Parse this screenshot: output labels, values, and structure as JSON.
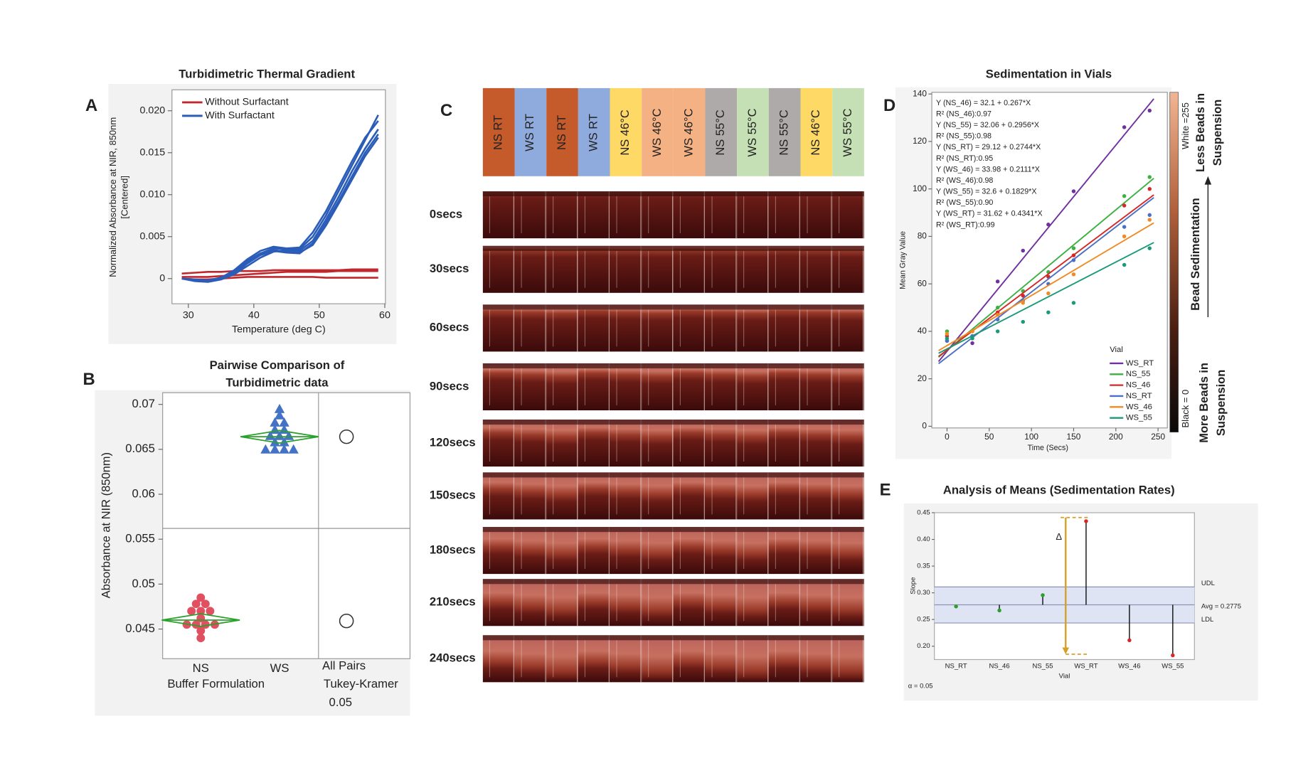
{
  "figure_labels": [
    "A",
    "B",
    "C",
    "D",
    "E"
  ],
  "chart_data": [
    {
      "type": "line",
      "title": "Turbidimetric Thermal Gradient",
      "x_label": "Temperature (deg C)",
      "y_label": [
        "Normalized Absorbance at NIR, 850nm",
        "[Centered]"
      ],
      "x": [
        29,
        31,
        33,
        35,
        37,
        39,
        41,
        43,
        45,
        47,
        49,
        51,
        53,
        55,
        57,
        59
      ],
      "series": [
        {
          "name": "Without Surfactant",
          "color": "#c0282d",
          "values": [
            0.0006,
            0.0007,
            0.0008,
            0.0008,
            0.0009,
            0.0009,
            0.0009,
            0.001,
            0.001,
            0.001,
            0.001,
            0.001,
            0.001,
            0.0011,
            0.0011,
            0.0011
          ]
        },
        {
          "color": "#c0282d",
          "values": [
            0.0002,
            0.0002,
            0.0002,
            0.0003,
            0.0004,
            0.0005,
            0.0006,
            0.0007,
            0.0008,
            0.0008,
            0.0008,
            0.0008,
            0.0009,
            0.0009,
            0.0009,
            0.0009
          ]
        },
        {
          "color": "#c0282d",
          "values": [
            0,
            -0.0001,
            -0.0001,
            0,
            0.0001,
            0.0002,
            0.0002,
            0.0002,
            0.0002,
            0.0002,
            0.0002,
            0.0001,
            0.0001,
            0.0001,
            0.0001,
            0.0001
          ]
        },
        {
          "name": "With Surfactant",
          "color": "#2a5cb8",
          "values": [
            0,
            -0.0002,
            -0.0003,
            0,
            0.0008,
            0.002,
            0.003,
            0.0036,
            0.0035,
            0.0035,
            0.005,
            0.0075,
            0.0105,
            0.0135,
            0.0165,
            0.0195
          ]
        },
        {
          "color": "#2a5cb8",
          "values": [
            0,
            -0.0001,
            -0.0002,
            0.0001,
            0.001,
            0.0023,
            0.0033,
            0.0038,
            0.0036,
            0.0037,
            0.0055,
            0.008,
            0.011,
            0.014,
            0.0168,
            0.0188
          ]
        },
        {
          "color": "#2a5cb8",
          "values": [
            0,
            -0.0003,
            -0.0004,
            -0.0001,
            0.0005,
            0.0015,
            0.0025,
            0.0032,
            0.0034,
            0.0033,
            0.0045,
            0.007,
            0.0098,
            0.0128,
            0.0155,
            0.0178
          ]
        },
        {
          "color": "#2a5cb8",
          "values": [
            0,
            -0.0002,
            -0.0003,
            0,
            0.0006,
            0.0018,
            0.0028,
            0.0033,
            0.0031,
            0.003,
            0.0042,
            0.0066,
            0.0093,
            0.0122,
            0.015,
            0.0172
          ]
        },
        {
          "color": "#2a5cb8",
          "values": [
            0,
            -0.0002,
            -0.0002,
            0.0001,
            0.0009,
            0.0021,
            0.003,
            0.0034,
            0.0032,
            0.0031,
            0.004,
            0.0063,
            0.009,
            0.0118,
            0.0146,
            0.0168
          ]
        }
      ],
      "xlim": [
        27.5,
        60.1
      ],
      "xticks": [
        30,
        40,
        50,
        60
      ],
      "ylim": [
        -0.003,
        0.0225
      ],
      "yticks": [
        0,
        0.005,
        {
          "value": 0.01,
          "label": "0.010"
        },
        0.015,
        {
          "value": 0.02,
          "label": "0.020"
        }
      ],
      "legend": "upper left"
    },
    {
      "type": "strip",
      "title": [
        "Pairwise Comparison of",
        "Turbidimetric data"
      ],
      "x_label": "Buffer Formulation",
      "y_label": "Absorbance at NIR (850nm)",
      "groups": [
        {
          "name": "NS",
          "color": "#e05060",
          "marker": "circle",
          "values": [
            0.0485,
            0.0478,
            0.0478,
            0.047,
            0.047,
            0.047,
            0.0462,
            0.0455,
            0.0455,
            0.0455,
            0.0455,
            0.0448,
            0.044
          ],
          "mean": 0.046,
          "ci": [
            0.0453,
            0.0467
          ]
        },
        {
          "name": "WS",
          "color": "#4472c4",
          "marker": "triangle",
          "values": [
            0.0695,
            0.0688,
            0.068,
            0.068,
            0.0672,
            0.0672,
            0.0665,
            0.0665,
            0.0665,
            0.0658,
            0.0658,
            0.065,
            0.065,
            0.065,
            0.065
          ],
          "mean": 0.0664,
          "ci": [
            0.0657,
            0.0671
          ]
        }
      ],
      "comparison": {
        "label": [
          "All Pairs",
          "Tukey-Kramer",
          "0.05"
        ],
        "circles": [
          0.0459,
          0.0664
        ]
      },
      "reference_line": 0.0562,
      "ylim": [
        0.0417,
        0.0713
      ],
      "yticks": [
        0.045,
        0.05,
        0.055,
        0.06,
        0.065,
        0.07
      ]
    },
    {
      "type": "scatter",
      "title": "Sedimentation in Vials",
      "x_label": "Time (Secs)",
      "y_label": "Mean Gray Value",
      "x": [
        0,
        30,
        60,
        90,
        120,
        150,
        210,
        240
      ],
      "legend_title": "Vial",
      "legend": "lower right",
      "series": [
        {
          "name": "WS_RT",
          "color": "#7030a0",
          "values": [
            36,
            35,
            61,
            74,
            85,
            99,
            126,
            133
          ],
          "intercept": 31.62,
          "slope": 0.4341
        },
        {
          "name": "NS_55",
          "color": "#3cb043",
          "values": [
            40,
            40,
            50,
            57,
            65,
            75,
            97,
            105
          ],
          "intercept": 32.06,
          "slope": 0.2956
        },
        {
          "name": "NS_46",
          "color": "#d62728",
          "values": [
            38,
            38,
            48,
            55,
            63,
            72,
            93,
            100
          ],
          "intercept": 32.1,
          "slope": 0.267
        },
        {
          "name": "NS_RT",
          "color": "#4a6fc4",
          "values": [
            36,
            38,
            45,
            53,
            60,
            70,
            84,
            89
          ],
          "intercept": 29.12,
          "slope": 0.2744
        },
        {
          "name": "WS_46",
          "color": "#f08a24",
          "values": [
            39,
            40,
            47,
            52,
            56,
            64,
            80,
            87
          ],
          "intercept": 33.98,
          "slope": 0.2111
        },
        {
          "name": "WS_55",
          "color": "#1a9a7a",
          "values": [
            37,
            37,
            40,
            44,
            48,
            52,
            68,
            75
          ],
          "intercept": 32.6,
          "slope": 0.1829
        }
      ],
      "annotations": [
        "Y (NS_46) = 32.1 + 0.267*X",
        "R² (NS_46):0.97",
        "Y (NS_55) = 32.06 + 0.2956*X",
        "R² (NS_55):0.98",
        "Y (NS_RT) = 29.12 + 0.2744*X",
        "R² (NS_RT):0.95",
        "Y (WS_46) = 33.98 + 0.2111*X",
        "R² (WS_46):0.98",
        "Y (WS_55) = 32.6 + 0.1829*X",
        "R² (WS_55):0.90",
        "Y (WS_RT) = 31.62 + 0.4341*X",
        "R² (WS_RT):0.99"
      ],
      "colorbar": {
        "top_label": "White =255",
        "bottom_label": "Black = 0",
        "upper_text": [
          "Less Beads in",
          "Suspension"
        ],
        "middle_text": "Bead Sedimentation",
        "lower_text": [
          "More Beads in",
          "Suspension"
        ]
      },
      "xlim": [
        -18,
        261
      ],
      "xticks": [
        0,
        50,
        100,
        150,
        200,
        250
      ],
      "ylim": [
        0,
        140
      ],
      "yticks": [
        0,
        20,
        40,
        60,
        80,
        100,
        120,
        140
      ]
    },
    {
      "type": "anom",
      "title": "Analysis of Means (Sedimentation Rates)",
      "x_label": "Vial",
      "y_label": "Slope",
      "categories": [
        "NS_RT",
        "NS_46",
        "NS_55",
        "WS_RT",
        "WS_46",
        "WS_55"
      ],
      "values": [
        0.2744,
        0.267,
        0.2956,
        0.4341,
        0.2111,
        0.1829
      ],
      "point_colors": [
        "#2ca02c",
        "#2ca02c",
        "#2ca02c",
        "#d62728",
        "#d62728",
        "#d62728"
      ],
      "avg": 0.2775,
      "avg_label": "Avg = 0.2775",
      "udl": 0.311,
      "udl_label": "UDL",
      "ldl": 0.2435,
      "ldl_label": "LDL",
      "alpha_label": "α = 0.05",
      "annotation": "Δ",
      "delta_range": [
        0.441,
        0.185
      ],
      "ylim": [
        0.175,
        0.45
      ],
      "yticks": [
        {
          "value": 0.2,
          "label": "0.20"
        },
        0.25,
        {
          "value": 0.3,
          "label": "0.30"
        },
        0.35,
        {
          "value": 0.4,
          "label": "0.40"
        },
        0.45
      ]
    }
  ],
  "panel_c": {
    "vials": [
      {
        "label": "NS RT",
        "color": "#c55a2b"
      },
      {
        "label": "WS RT",
        "color": "#8faadc"
      },
      {
        "label": "NS RT",
        "color": "#c55a2b"
      },
      {
        "label": "WS RT",
        "color": "#8faadc"
      },
      {
        "label": "NS 46°C",
        "color": "#ffd966"
      },
      {
        "label": "WS 46°C",
        "color": "#f4b183"
      },
      {
        "label": "WS 46°C",
        "color": "#f4b183"
      },
      {
        "label": "NS 55°C",
        "color": "#aeaaaa"
      },
      {
        "label": "WS 55°C",
        "color": "#c5e0b4"
      },
      {
        "label": "NS 55°C",
        "color": "#aeaaaa"
      },
      {
        "label": "NS 46°C",
        "color": "#ffd966"
      },
      {
        "label": "WS 55°C",
        "color": "#c5e0b4"
      }
    ],
    "times": [
      "0secs",
      "30secs",
      "60secs",
      "90secs",
      "120secs",
      "150secs",
      "180secs",
      "210secs",
      "240secs"
    ]
  }
}
